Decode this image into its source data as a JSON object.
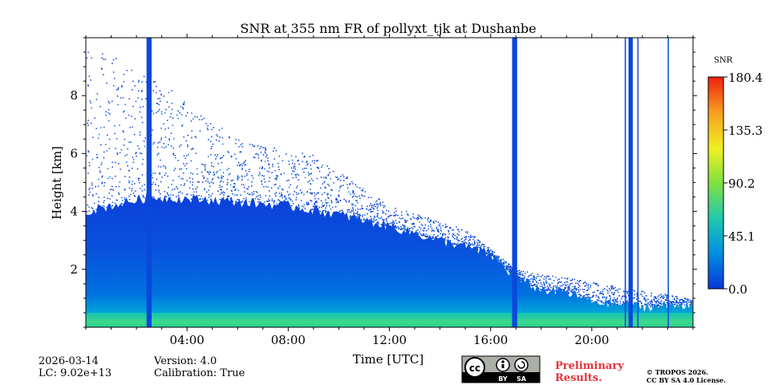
{
  "chart_data": {
    "type": "heatmap",
    "title": "SNR at 355 nm FR of pollyxt_tjk at Dushanbe",
    "xlabel": "Time [UTC]",
    "ylabel": "Height [km]",
    "xlim_hours": [
      0,
      24
    ],
    "ylim_km": [
      0,
      10
    ],
    "xticks": [
      {
        "value": 4,
        "label": "04:00"
      },
      {
        "value": 8,
        "label": "08:00"
      },
      {
        "value": 12,
        "label": "12:00"
      },
      {
        "value": 16,
        "label": "16:00"
      },
      {
        "value": 20,
        "label": "20:00"
      }
    ],
    "yticks": [
      {
        "value": 2,
        "label": "2"
      },
      {
        "value": 4,
        "label": "4"
      },
      {
        "value": 6,
        "label": "6"
      },
      {
        "value": 8,
        "label": "8"
      }
    ],
    "colorbar": {
      "label": "SNR",
      "min": 0.0,
      "max": 180.4,
      "ticks": [
        "0.0",
        "45.1",
        "90.2",
        "135.3",
        "180.4"
      ],
      "tick_values": [
        0.0,
        45.1,
        90.2,
        135.3,
        180.4
      ],
      "colormap": [
        "#0a36d8",
        "#0090e0",
        "#20c8b0",
        "#80e040",
        "#f0f020",
        "#f8a020",
        "#f02010"
      ]
    },
    "layer_top_km": [
      {
        "t": 0.0,
        "h": 4.0
      },
      {
        "t": 2.5,
        "h": 4.5
      },
      {
        "t": 5.0,
        "h": 4.4
      },
      {
        "t": 8.0,
        "h": 4.2
      },
      {
        "t": 10.0,
        "h": 3.9
      },
      {
        "t": 12.0,
        "h": 3.5
      },
      {
        "t": 14.0,
        "h": 3.0
      },
      {
        "t": 15.0,
        "h": 2.8
      },
      {
        "t": 16.0,
        "h": 2.5
      },
      {
        "t": 17.0,
        "h": 1.7
      },
      {
        "t": 18.0,
        "h": 1.3
      },
      {
        "t": 19.0,
        "h": 1.2
      },
      {
        "t": 20.0,
        "h": 0.9
      },
      {
        "t": 22.0,
        "h": 0.7
      },
      {
        "t": 24.0,
        "h": 0.8
      }
    ],
    "noise_top_km": [
      {
        "t": 0.0,
        "h": 10.0
      },
      {
        "t": 3.0,
        "h": 8.5
      },
      {
        "t": 6.0,
        "h": 6.5
      },
      {
        "t": 9.0,
        "h": 6.0
      },
      {
        "t": 12.0,
        "h": 4.2
      },
      {
        "t": 15.0,
        "h": 3.4
      },
      {
        "t": 17.0,
        "h": 2.0
      },
      {
        "t": 24.0,
        "h": 1.0
      }
    ],
    "high_snr_band_km": [
      0.0,
      0.5
    ],
    "data_gaps_hours": [
      {
        "start": 2.4,
        "end": 2.6
      },
      {
        "start": 16.85,
        "end": 17.05
      },
      {
        "start": 21.3,
        "end": 21.35
      },
      {
        "start": 21.45,
        "end": 21.62
      },
      {
        "start": 21.8,
        "end": 21.83
      },
      {
        "start": 23.0,
        "end": 23.03
      }
    ]
  },
  "footer": {
    "date": "2026-03-14",
    "lc": "LC: 9.02e+13",
    "version": "Version: 4.0",
    "calibration": "Calibration: True",
    "license_badge": {
      "cc": "cc",
      "by": "BY",
      "sa": "SA"
    },
    "preliminary_line1": "Preliminary",
    "preliminary_line2": "Results.",
    "copyright_line1": "© TROPOS 2026.",
    "copyright_line2": "CC BY SA 4.0 License."
  }
}
